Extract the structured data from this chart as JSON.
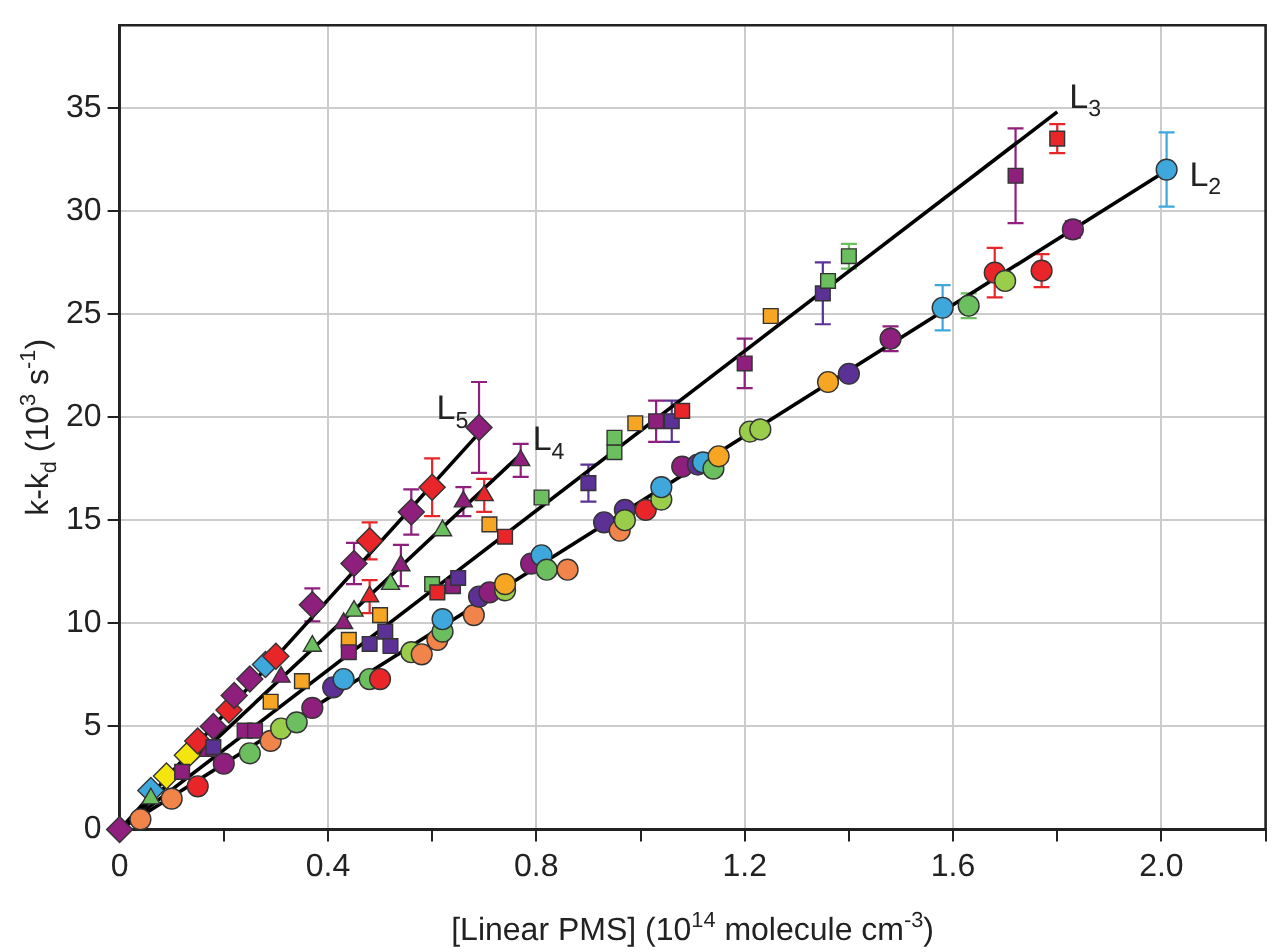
{
  "chart_data": {
    "type": "scatter",
    "xlabel": "[Linear PMS] (10$^{14}$ molecule cm$^{-3}$)",
    "ylabel": "k-k$_{d}$ (10$^{3}$ s$^{-1}$)",
    "xlim": [
      0,
      2.2
    ],
    "ylim": [
      0,
      39
    ],
    "xticks": [
      0,
      {
        "value": 0.2,
        "label": null
      },
      0.4,
      {
        "value": 0.6,
        "label": null
      },
      0.8,
      {
        "value": 1.0,
        "label": null
      },
      1.2,
      {
        "value": 1.4,
        "label": null
      },
      1.6,
      {
        "value": 1.8,
        "label": null
      },
      {
        "value": 2.0,
        "label": "2.0"
      },
      {
        "value": 2.2,
        "label": null
      }
    ],
    "yticks": [
      0,
      5,
      10,
      15,
      20,
      25,
      30,
      35
    ],
    "grid": true,
    "legend": false,
    "series": [
      {
        "name": "L$_{2}$",
        "type": "line",
        "marker": "none",
        "color": "#000000",
        "x": [
          0,
          2.0
        ],
        "values": [
          0,
          31.8
        ]
      },
      {
        "name": "L$_{3}$",
        "type": "line",
        "marker": "none",
        "color": "#000000",
        "x": [
          0,
          1.8
        ],
        "values": [
          0,
          34.8
        ]
      },
      {
        "name": "L$_{4}$",
        "type": "line",
        "marker": "none",
        "color": "#000000",
        "x": [
          0,
          0.77
        ],
        "values": [
          0,
          18.2
        ]
      },
      {
        "name": "L$_{5}$",
        "type": "line",
        "marker": "none",
        "color": "#000000",
        "x": [
          0,
          0.7
        ],
        "values": [
          0,
          19.5
        ]
      },
      {
        "marker": "circle",
        "x": [
          0.04,
          0.1,
          0.15,
          0.2,
          0.25,
          0.29,
          0.31,
          0.34,
          0.37,
          0.41,
          0.43,
          0.48,
          0.5,
          0.56,
          0.58,
          0.61,
          0.62,
          0.62,
          0.68,
          0.69,
          0.71,
          0.74,
          0.74,
          0.79,
          0.81,
          0.82,
          0.86,
          0.93,
          0.96,
          0.97,
          0.97,
          1.01,
          1.04,
          1.04,
          1.08,
          1.11,
          1.12,
          1.14,
          1.15,
          1.21,
          1.23,
          1.36,
          1.4,
          1.48,
          1.58,
          1.63,
          1.68,
          1.7,
          1.77,
          1.83,
          2.01
        ],
        "values": [
          0.5,
          1.5,
          2.1,
          3.2,
          3.7,
          4.3,
          4.9,
          5.2,
          5.9,
          6.9,
          7.3,
          7.3,
          7.3,
          8.6,
          8.5,
          9.2,
          9.6,
          10.2,
          10.4,
          11.3,
          11.5,
          11.6,
          11.9,
          12.9,
          13.3,
          12.6,
          12.6,
          14.9,
          14.5,
          15.5,
          15.0,
          15.5,
          16.0,
          16.6,
          17.6,
          17.7,
          17.8,
          17.5,
          18.1,
          19.3,
          19.4,
          21.7,
          22.1,
          23.8,
          25.3,
          25.4,
          27.0,
          26.6,
          27.1,
          29.1,
          32.0
        ],
        "colors": [
          "#f0844a",
          "#f0844a",
          "#e8262a",
          "#8e1f7d",
          "#6cbf5e",
          "#f0844a",
          "#9acd4a",
          "#6cbf5e",
          "#8e1f7d",
          "#5b3195",
          "#3ea8dc",
          "#6cbf5e",
          "#e8262a",
          "#9acd4a",
          "#f0844a",
          "#f0844a",
          "#6cbf5e",
          "#3ea8dc",
          "#f0844a",
          "#5b3195",
          "#8e1f7d",
          "#9acd4a",
          "#f6a623",
          "#8e1f7d",
          "#3ea8dc",
          "#6cbf5e",
          "#f0844a",
          "#5b3195",
          "#f0844a",
          "#5b3195",
          "#9acd4a",
          "#e8262a",
          "#9acd4a",
          "#3ea8dc",
          "#8e1f7d",
          "#5b3195",
          "#3ea8dc",
          "#6cbf5e",
          "#f6a623",
          "#9acd4a",
          "#9acd4a",
          "#f6a623",
          "#5b3195",
          "#8e1f7d",
          "#3ea8dc",
          "#6cbf5e",
          "#e8262a",
          "#9acd4a",
          "#e8262a",
          "#8e1f7d",
          "#3ea8dc"
        ],
        "errors": [
          null,
          null,
          null,
          null,
          null,
          null,
          null,
          null,
          null,
          null,
          null,
          null,
          null,
          null,
          null,
          null,
          null,
          null,
          null,
          null,
          null,
          null,
          null,
          null,
          null,
          null,
          null,
          null,
          null,
          null,
          null,
          null,
          null,
          null,
          null,
          null,
          null,
          null,
          null,
          null,
          null,
          null,
          null,
          0.6,
          1.1,
          0.6,
          1.2,
          null,
          0.8,
          0.4,
          1.8
        ]
      },
      {
        "marker": "square",
        "x": [
          0.12,
          0.18,
          0.24,
          0.26,
          0.29,
          0.35,
          0.44,
          0.44,
          0.48,
          0.5,
          0.51,
          0.52,
          0.6,
          0.61,
          0.64,
          0.65,
          0.71,
          0.74,
          0.81,
          0.9,
          0.95,
          0.95,
          0.99,
          1.03,
          1.06,
          1.08,
          1.2,
          1.25,
          1.35,
          1.36,
          1.4,
          1.72,
          1.8
        ],
        "values": [
          2.8,
          4.0,
          4.8,
          4.8,
          6.2,
          7.2,
          9.2,
          8.6,
          9.0,
          10.4,
          9.6,
          8.9,
          11.9,
          11.5,
          11.8,
          12.2,
          14.8,
          14.2,
          16.1,
          16.8,
          18.3,
          19.0,
          19.7,
          19.8,
          19.8,
          20.3,
          22.6,
          24.9,
          26.0,
          26.6,
          27.8,
          31.7,
          33.5
        ],
        "colors": [
          "#8e1f7d",
          "#5b3195",
          "#8e1f7d",
          "#8e1f7d",
          "#f6a623",
          "#f6a623",
          "#f6a623",
          "#8e1f7d",
          "#5b3195",
          "#f6a623",
          "#5b3195",
          "#5b3195",
          "#6cbf5e",
          "#e8262a",
          "#8e1f7d",
          "#5b3195",
          "#f6a623",
          "#e8262a",
          "#6cbf5e",
          "#5b3195",
          "#6cbf5e",
          "#6cbf5e",
          "#f6a623",
          "#8e1f7d",
          "#5b3195",
          "#e8262a",
          "#8e1f7d",
          "#f6a623",
          "#5b3195",
          "#6cbf5e",
          "#6cbf5e",
          "#8e1f7d",
          "#e8262a"
        ],
        "errors": [
          null,
          null,
          null,
          null,
          null,
          null,
          null,
          null,
          null,
          null,
          null,
          null,
          null,
          null,
          null,
          null,
          null,
          null,
          null,
          0.9,
          null,
          null,
          null,
          1.0,
          1.0,
          null,
          1.2,
          null,
          1.5,
          null,
          0.6,
          2.3,
          0.7
        ]
      },
      {
        "marker": "triangle",
        "x": [
          0.06,
          0.17,
          0.31,
          0.37,
          0.43,
          0.45,
          0.48,
          0.52,
          0.54,
          0.62,
          0.66,
          0.7,
          0.77
        ],
        "values": [
          1.5,
          3.8,
          7.4,
          8.9,
          10.0,
          10.6,
          11.3,
          11.9,
          12.8,
          14.5,
          15.9,
          16.2,
          17.9
        ],
        "colors": [
          "#6cbf5e",
          "#8e1f7d",
          "#8e1f7d",
          "#6cbf5e",
          "#8e1f7d",
          "#6cbf5e",
          "#e8262a",
          "#6cbf5e",
          "#8e1f7d",
          "#6cbf5e",
          "#8e1f7d",
          "#e8262a",
          "#8e1f7d"
        ],
        "errors": [
          null,
          null,
          null,
          null,
          null,
          null,
          0.8,
          null,
          1.0,
          null,
          0.7,
          0.8,
          0.8
        ]
      },
      {
        "marker": "diamond",
        "x": [
          0,
          0.06,
          0.09,
          0.13,
          0.15,
          0.18,
          0.21,
          0.22,
          0.25,
          0.28,
          0.3,
          0.37,
          0.45,
          0.48,
          0.56,
          0.6,
          0.69
        ],
        "values": [
          0,
          1.9,
          2.6,
          3.6,
          4.3,
          5.0,
          5.8,
          6.5,
          7.3,
          8.0,
          8.4,
          10.9,
          12.9,
          14.0,
          15.4,
          16.6,
          19.5
        ],
        "colors": [
          "#8e1f7d",
          "#3ea8dc",
          "#f5e50f",
          "#f5e50f",
          "#e8262a",
          "#8e1f7d",
          "#e8262a",
          "#8e1f7d",
          "#8e1f7d",
          "#3ea8dc",
          "#e8262a",
          "#8e1f7d",
          "#8e1f7d",
          "#e8262a",
          "#8e1f7d",
          "#e8262a",
          "#8e1f7d"
        ],
        "errors": [
          null,
          null,
          null,
          null,
          null,
          null,
          null,
          null,
          null,
          null,
          null,
          0.8,
          1.0,
          0.9,
          1.1,
          1.4,
          2.2
        ]
      }
    ]
  }
}
